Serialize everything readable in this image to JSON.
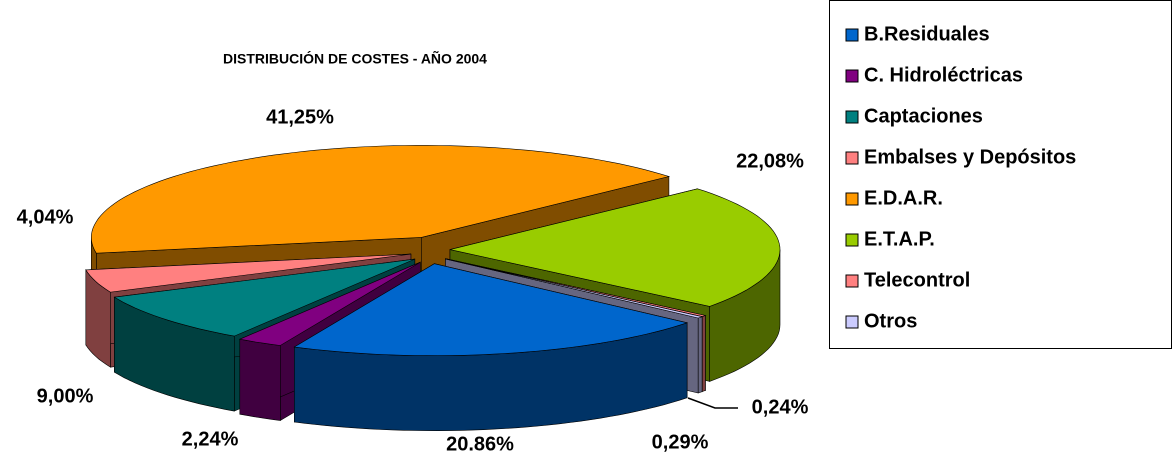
{
  "chart_data": {
    "type": "pie",
    "title": "DISTRIBUCIÓN DE COSTES - AÑO 2004",
    "categories": [
      "B.Residuales",
      "C. Hidroléctricas",
      "Captaciones",
      "Embalses y Depósitos",
      "E.D.A.R.",
      "E.T.A.P.",
      "Telecontrol",
      "Otros"
    ],
    "values": [
      20.86,
      2.24,
      9.0,
      4.04,
      41.25,
      22.08,
      0.24,
      0.29
    ],
    "value_labels": [
      "20.86%",
      "2,24%",
      "9,00%",
      "4,04%",
      "41,25%",
      "22,08%",
      "0,24%",
      "0,29%"
    ],
    "colors": [
      "#0066cc",
      "#800080",
      "#008080",
      "#ff8080",
      "#ff9900",
      "#99cc00",
      "#ff8080",
      "#ccccff"
    ],
    "legend": "right"
  }
}
